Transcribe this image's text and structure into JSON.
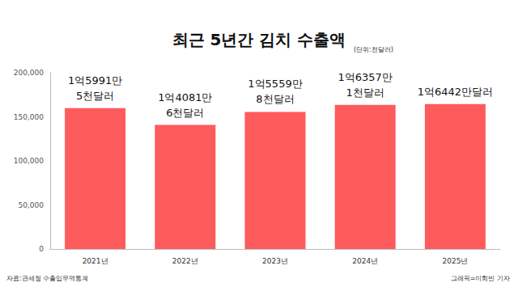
{
  "chart_data": {
    "type": "bar",
    "title": "최근 5년간 김치 수출액",
    "subtitle": "(단위:천달러)",
    "annotations": [
      "자료:관세청 수출입무역통계",
      "그래픽=이희빈 기자"
    ],
    "categories": [
      "2021년",
      "2022년",
      "2023년",
      "2024년",
      "2025년"
    ],
    "values": [
      159915,
      140816,
      155598,
      163571,
      164420
    ],
    "value_labels": [
      "1억5991만\n5천달러",
      "1억4081만\n6천달러",
      "1억5559만\n8천달러",
      "1억6357만\n1천달러",
      "1억6442만달러"
    ],
    "color": "#fe5b5c",
    "ylim": [
      0,
      200000
    ],
    "yticks": [
      0,
      {
        "value": 50000,
        "label": "50,000"
      },
      {
        "value": 100000,
        "label": "100,000"
      },
      {
        "value": 150000,
        "label": "150,000"
      },
      {
        "value": 200000,
        "label": "200,000"
      }
    ],
    "grid": false,
    "data_labels": true
  }
}
